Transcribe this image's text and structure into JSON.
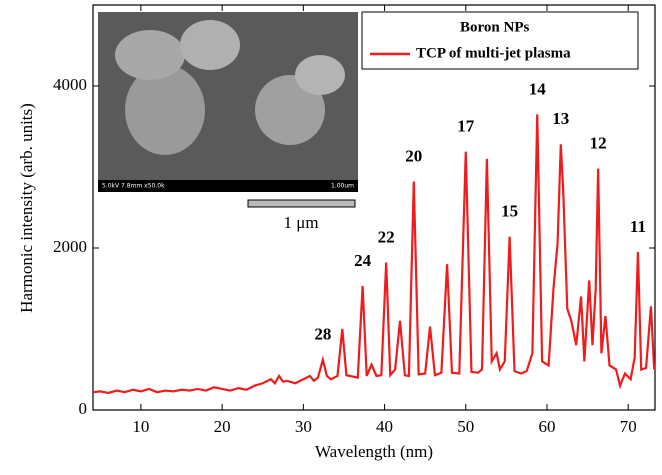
{
  "chart_data": {
    "type": "line",
    "xlabel": "Wavelength (nm)",
    "ylabel": "Harmonic intensity (arb. units)",
    "xlim": [
      4.1,
      73.3
    ],
    "ylim": [
      0,
      5000
    ],
    "xticks": [
      10,
      20,
      30,
      40,
      50,
      60,
      70
    ],
    "yticks": [
      0,
      2000,
      4000
    ],
    "legend_title": "Boron NPs",
    "legend_title_color": "#800080",
    "legend_position": "upper right",
    "x": [
      4.1,
      5,
      6,
      7,
      8,
      9,
      10,
      11,
      12,
      13,
      14,
      15,
      16,
      17,
      18,
      19,
      20,
      21,
      22,
      23,
      24,
      25,
      26,
      26.5,
      27,
      27.5,
      28,
      29,
      30,
      30.8,
      31.3,
      31.8,
      32.4,
      32.9,
      33.4,
      34.2,
      34.8,
      35.3,
      36.7,
      37.3,
      37.8,
      38.4,
      39.0,
      39.6,
      40.2,
      40.7,
      41.3,
      41.9,
      42.5,
      43.0,
      43.6,
      44.2,
      45.0,
      45.6,
      46.2,
      47.0,
      47.7,
      48.3,
      49.2,
      50.0,
      50.7,
      51.5,
      52.0,
      52.6,
      53.2,
      53.8,
      54.2,
      54.8,
      55.4,
      56.0,
      56.8,
      57.5,
      58.2,
      58.8,
      59.4,
      60.2,
      60.8,
      61.3,
      61.7,
      62.0,
      62.5,
      63.0,
      63.6,
      64.2,
      64.6,
      65.2,
      65.6,
      66.0,
      66.3,
      66.7,
      67.2,
      67.7,
      68.5,
      69.0,
      69.6,
      70.3,
      70.8,
      71.2,
      71.6,
      72.2,
      72.8,
      73.2
    ],
    "series": [
      {
        "name": "TCP of multi-jet plasma",
        "color": "#ee1c1c",
        "values": [
          220,
          230,
          210,
          240,
          220,
          250,
          230,
          260,
          220,
          240,
          230,
          250,
          240,
          260,
          240,
          280,
          260,
          240,
          270,
          250,
          300,
          330,
          380,
          330,
          420,
          350,
          360,
          330,
          380,
          420,
          360,
          400,
          620,
          420,
          380,
          420,
          1000,
          430,
          400,
          1530,
          420,
          560,
          420,
          430,
          1820,
          430,
          500,
          1100,
          430,
          420,
          2820,
          440,
          450,
          1030,
          430,
          460,
          1800,
          460,
          450,
          3190,
          470,
          460,
          500,
          3100,
          600,
          700,
          500,
          600,
          2140,
          480,
          450,
          480,
          700,
          3650,
          600,
          550,
          1500,
          2050,
          3280,
          2700,
          1250,
          1100,
          800,
          1400,
          600,
          1600,
          800,
          1500,
          2980,
          700,
          1160,
          550,
          500,
          300,
          450,
          380,
          650,
          1950,
          500,
          520,
          1280,
          500
        ]
      }
    ],
    "annotations": [
      {
        "text": "28",
        "x": 32.4,
        "y": 620
      },
      {
        "text": "24",
        "x": 37.3,
        "y": 1530
      },
      {
        "text": "22",
        "x": 40.2,
        "y": 1820
      },
      {
        "text": "20",
        "x": 43.6,
        "y": 2820
      },
      {
        "text": "17",
        "x": 50.0,
        "y": 3190
      },
      {
        "text": "15",
        "x": 55.4,
        "y": 2140
      },
      {
        "text": "14",
        "x": 58.8,
        "y": 3650
      },
      {
        "text": "13",
        "x": 61.7,
        "y": 3280
      },
      {
        "text": "12",
        "x": 66.3,
        "y": 2980
      },
      {
        "text": "11",
        "x": 71.2,
        "y": 1950
      }
    ],
    "inset": {
      "scale_bar": "1 μm",
      "sem_info": "5.0kV 7.8mm x50.0k",
      "sem_scale": "1.00um"
    }
  }
}
